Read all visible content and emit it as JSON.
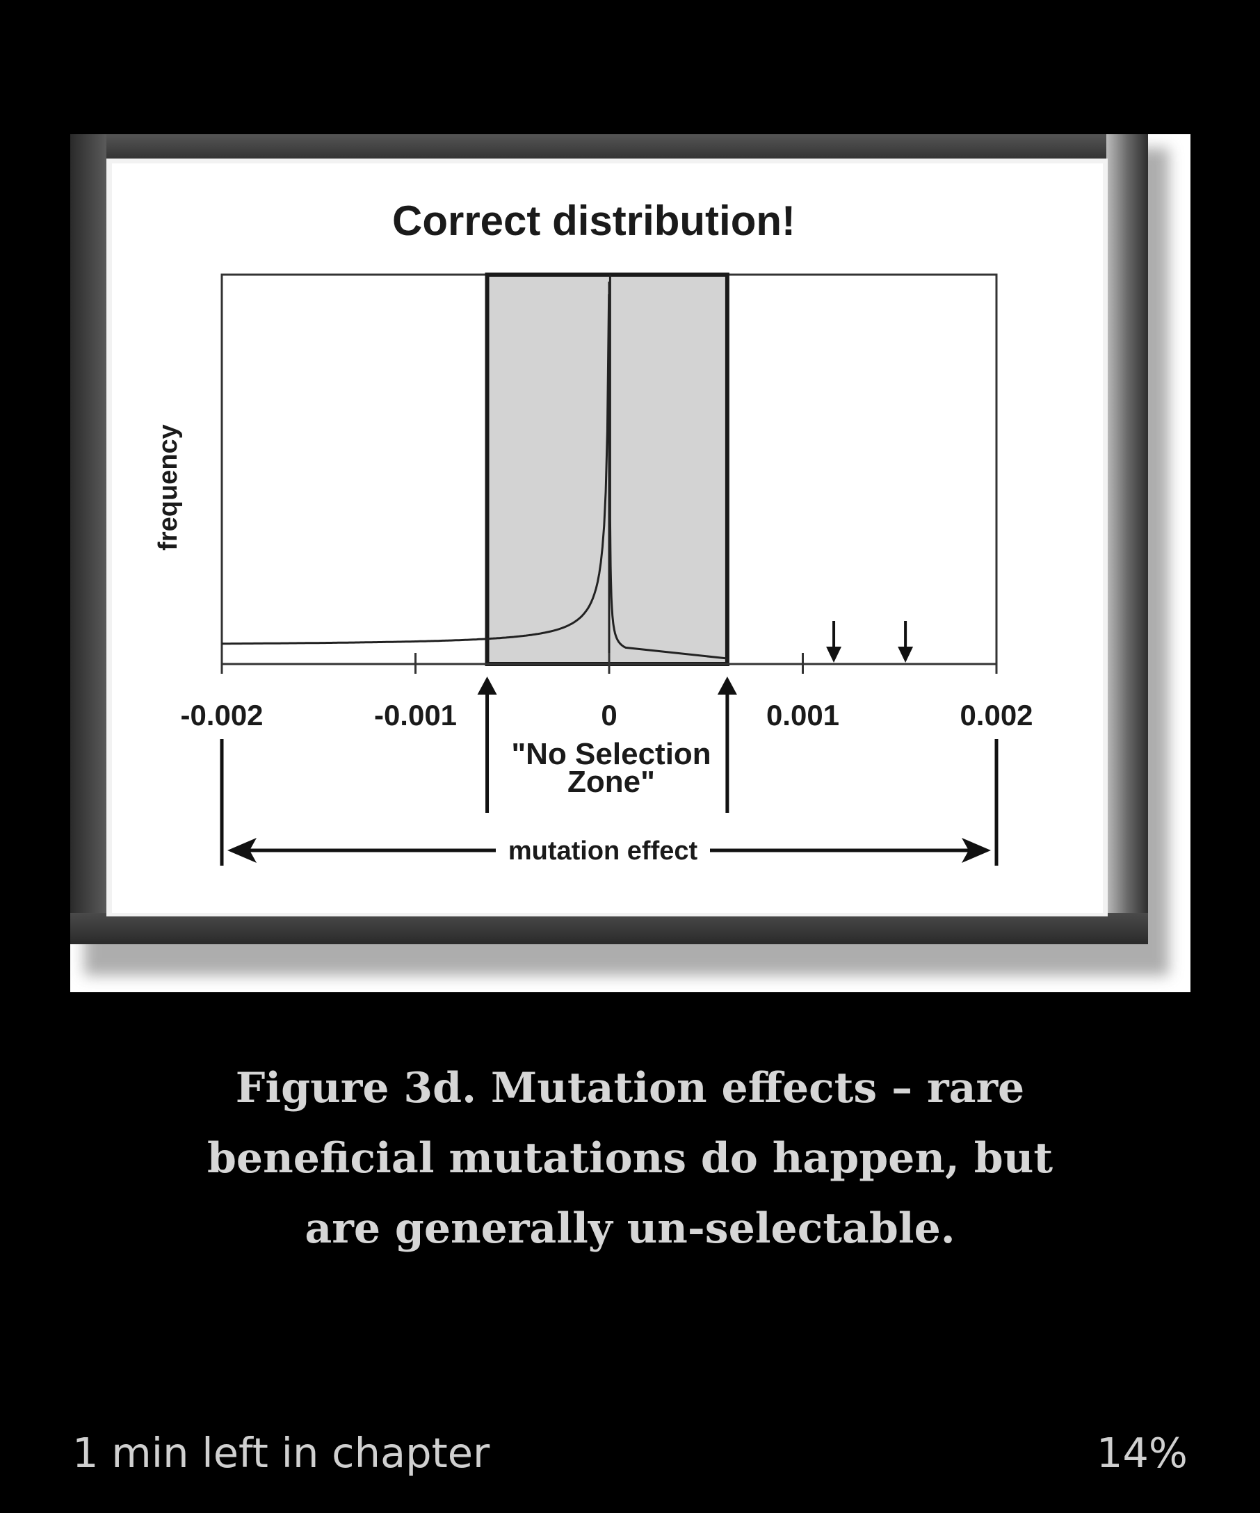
{
  "figure": {
    "image_name": "correct-distribution-framed-figure",
    "chart_data": {
      "type": "line",
      "title": "Correct distribution!",
      "xlabel": "mutation effect",
      "ylabel": "frequency",
      "xlim": [
        -0.002,
        0.002
      ],
      "x_tick_labels": [
        "-0.002",
        "-0.001",
        "0",
        "0.001",
        "0.002"
      ],
      "x_ticks": [
        -0.002,
        -0.001,
        0,
        0.001,
        0.002
      ],
      "no_selection_zone": {
        "label_line1": "\"No Selection",
        "label_line2": "Zone\"",
        "x_range": [
          -0.00063,
          0.00061
        ]
      },
      "beneficial_markers_x": [
        0.00116,
        0.00153
      ],
      "grid": false,
      "frame_color": "#3a3a3a",
      "zone_fill": "#d3d3d3"
    }
  },
  "caption": {
    "lines": [
      "Figure 3d. Mutation effects – rare",
      "beneficial mutations do happen, but",
      "are generally un-selectable."
    ]
  },
  "footer": {
    "time_left": "1 min left in chapter",
    "progress_percent": "14%"
  }
}
